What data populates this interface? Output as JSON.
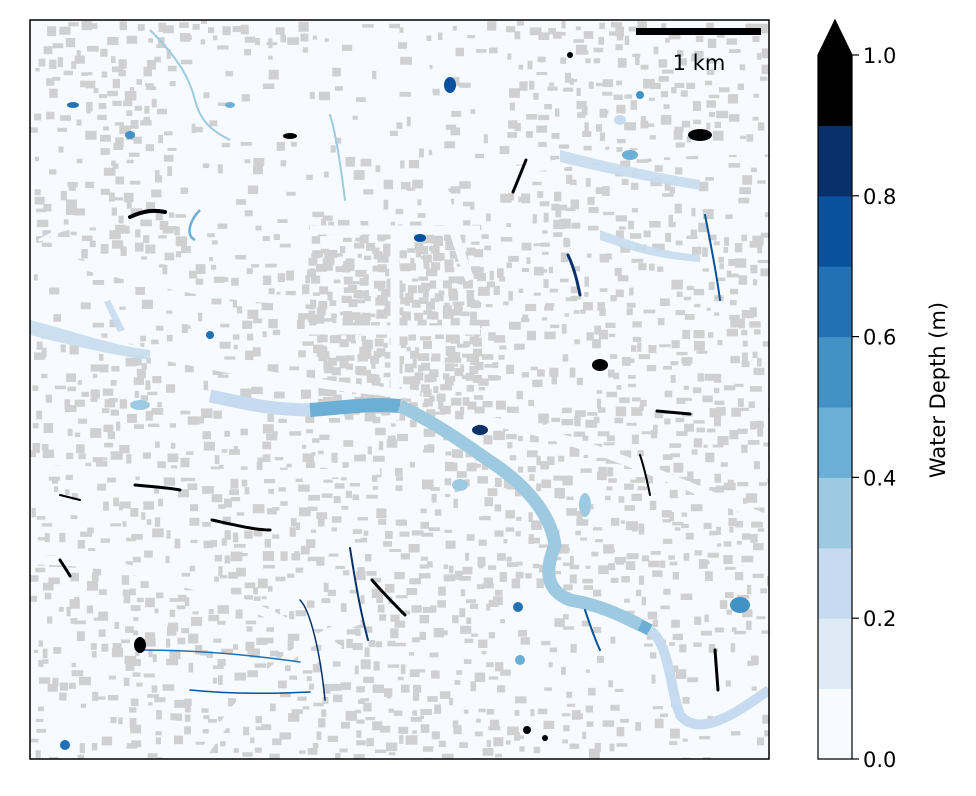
{
  "map": {
    "scalebar_label": "1 km",
    "land_color": "#f7fbff",
    "building_color": "#d0d0d0",
    "river_segments": [
      {
        "color": "#c6dbef"
      },
      {
        "color": "#6baed6"
      },
      {
        "color": "#9ecae1"
      },
      {
        "color": "#6baed6"
      },
      {
        "color": "#c6dbef"
      }
    ]
  },
  "colorbar": {
    "label": "Water Depth (m)",
    "ticks": [
      "0.0",
      "0.2",
      "0.4",
      "0.6",
      "0.8",
      "1.0"
    ],
    "extend": "max",
    "bins": [
      {
        "from": 0.0,
        "to": 0.1,
        "color": "#f7fbff"
      },
      {
        "from": 0.1,
        "to": 0.2,
        "color": "#deebf7"
      },
      {
        "from": 0.2,
        "to": 0.3,
        "color": "#c6dbef"
      },
      {
        "from": 0.3,
        "to": 0.4,
        "color": "#9ecae1"
      },
      {
        "from": 0.4,
        "to": 0.5,
        "color": "#6baed6"
      },
      {
        "from": 0.5,
        "to": 0.6,
        "color": "#4292c6"
      },
      {
        "from": 0.6,
        "to": 0.7,
        "color": "#2171b5"
      },
      {
        "from": 0.7,
        "to": 0.8,
        "color": "#08519c"
      },
      {
        "from": 0.8,
        "to": 0.9,
        "color": "#08306b"
      }
    ],
    "over_color": "#000000"
  }
}
